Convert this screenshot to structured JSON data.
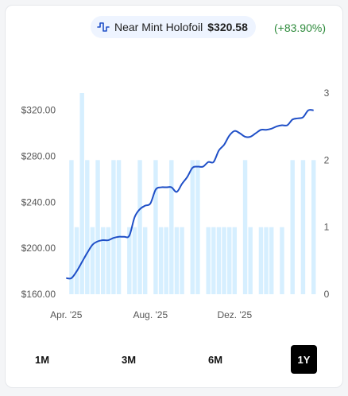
{
  "legend": {
    "icon": "pulse-line-icon",
    "label": "Near Mint Holofoil",
    "price": "$320.58",
    "change": "(+83.90%)",
    "change_color": "#2e8b3c"
  },
  "time_buttons": [
    {
      "label": "1M",
      "active": false
    },
    {
      "label": "3M",
      "active": false
    },
    {
      "label": "6M",
      "active": false
    },
    {
      "label": "1Y",
      "active": true
    }
  ],
  "chart_data": {
    "type": "line",
    "x_tick_labels": [
      "Apr. '25",
      "Aug. '25",
      "Dez. '25"
    ],
    "y_left": {
      "ticks": [
        160,
        200,
        240,
        280,
        320
      ],
      "tick_labels": [
        "$160.00",
        "$200.00",
        "$240.00",
        "$280.00",
        "$320.00"
      ],
      "range": [
        160,
        335
      ]
    },
    "y_right": {
      "ticks": [
        0,
        1,
        2,
        3
      ],
      "range": [
        0,
        3
      ]
    },
    "line_color": "#1f4fc7",
    "bar_color": "#d6efff",
    "series": [
      {
        "kind": "line",
        "axis": "left",
        "values": [
          174,
          174,
          180,
          188,
          196,
          203,
          206,
          207,
          207,
          209,
          210,
          210,
          211,
          227,
          234,
          237,
          239,
          251,
          253,
          253,
          253,
          249,
          256,
          262,
          270,
          271,
          271,
          275,
          275,
          285,
          290,
          298,
          302,
          300,
          297,
          297,
          300,
          303,
          303,
          304,
          306,
          307,
          307,
          312,
          313,
          314,
          320,
          320
        ]
      },
      {
        "kind": "bar",
        "axis": "right",
        "values": [
          0,
          2,
          1,
          3,
          2,
          1,
          2,
          1,
          1,
          2,
          2,
          0,
          1,
          1,
          2,
          1,
          0,
          2,
          1,
          1,
          2,
          1,
          1,
          0,
          2,
          2,
          0,
          1,
          1,
          1,
          1,
          1,
          1,
          0,
          2,
          1,
          0,
          1,
          1,
          1,
          0,
          1,
          0,
          2,
          0,
          2,
          0,
          2
        ]
      }
    ]
  }
}
